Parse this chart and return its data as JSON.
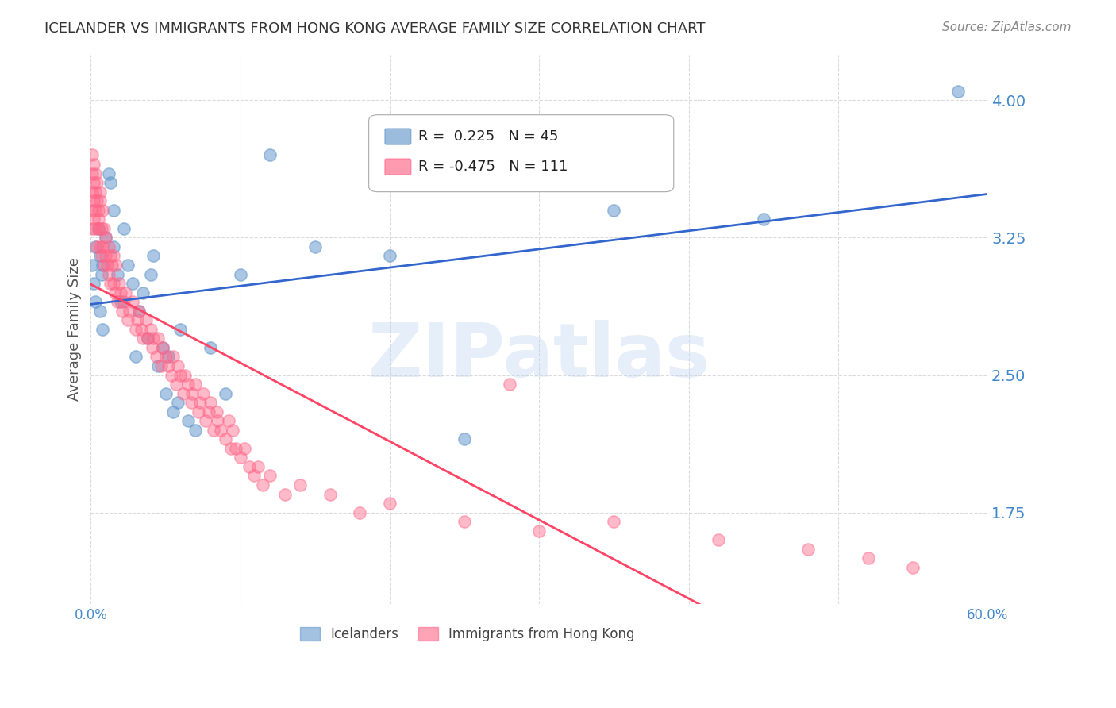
{
  "title": "ICELANDER VS IMMIGRANTS FROM HONG KONG AVERAGE FAMILY SIZE CORRELATION CHART",
  "source": "Source: ZipAtlas.com",
  "xlabel": "",
  "ylabel": "Average Family Size",
  "xlim": [
    0.0,
    0.6
  ],
  "ylim": [
    1.25,
    4.25
  ],
  "yticks": [
    1.75,
    2.5,
    3.25,
    4.0
  ],
  "xticks": [
    0.0,
    0.1,
    0.2,
    0.3,
    0.4,
    0.5,
    0.6
  ],
  "xtick_labels": [
    "0.0%",
    "",
    "",
    "",
    "",
    "",
    "60.0%"
  ],
  "legend_r1": "R =  0.225   N = 45",
  "legend_r2": "R = -0.475   N = 111",
  "label_icelanders": "Icelanders",
  "label_hk": "Immigrants from Hong Kong",
  "blue_color": "#6699CC",
  "pink_color": "#FF6688",
  "blue_line_color": "#3366CC",
  "pink_line_color": "#FF4466",
  "watermark": "ZIPatlas",
  "title_color": "#333333",
  "axis_color": "#4488CC",
  "grid_color": "#CCCCCC",
  "icelanders_x": [
    0.001,
    0.002,
    0.003,
    0.003,
    0.005,
    0.006,
    0.006,
    0.007,
    0.008,
    0.008,
    0.01,
    0.012,
    0.013,
    0.015,
    0.015,
    0.018,
    0.02,
    0.022,
    0.025,
    0.028,
    0.03,
    0.032,
    0.035,
    0.038,
    0.04,
    0.042,
    0.045,
    0.048,
    0.05,
    0.052,
    0.055,
    0.058,
    0.06,
    0.065,
    0.07,
    0.08,
    0.09,
    0.1,
    0.12,
    0.15,
    0.2,
    0.25,
    0.35,
    0.45,
    0.58
  ],
  "icelanders_y": [
    3.1,
    3.0,
    3.2,
    2.9,
    3.3,
    3.15,
    2.85,
    3.05,
    2.75,
    3.1,
    3.25,
    3.6,
    3.55,
    3.4,
    3.2,
    3.05,
    2.9,
    3.3,
    3.1,
    3.0,
    2.6,
    2.85,
    2.95,
    2.7,
    3.05,
    3.15,
    2.55,
    2.65,
    2.4,
    2.6,
    2.3,
    2.35,
    2.75,
    2.25,
    2.2,
    2.65,
    2.4,
    3.05,
    3.7,
    3.2,
    3.15,
    2.15,
    3.4,
    3.35,
    4.05
  ],
  "hk_x": [
    0.001,
    0.001,
    0.001,
    0.001,
    0.001,
    0.002,
    0.002,
    0.002,
    0.002,
    0.003,
    0.003,
    0.003,
    0.003,
    0.004,
    0.004,
    0.004,
    0.005,
    0.005,
    0.005,
    0.006,
    0.006,
    0.006,
    0.007,
    0.007,
    0.008,
    0.008,
    0.009,
    0.009,
    0.01,
    0.01,
    0.011,
    0.012,
    0.012,
    0.013,
    0.013,
    0.014,
    0.015,
    0.015,
    0.016,
    0.017,
    0.018,
    0.019,
    0.02,
    0.021,
    0.022,
    0.023,
    0.025,
    0.026,
    0.028,
    0.03,
    0.031,
    0.032,
    0.034,
    0.035,
    0.037,
    0.038,
    0.04,
    0.041,
    0.042,
    0.044,
    0.045,
    0.047,
    0.048,
    0.05,
    0.052,
    0.054,
    0.055,
    0.057,
    0.058,
    0.06,
    0.062,
    0.063,
    0.065,
    0.067,
    0.068,
    0.07,
    0.072,
    0.073,
    0.075,
    0.077,
    0.079,
    0.08,
    0.082,
    0.084,
    0.085,
    0.087,
    0.09,
    0.092,
    0.094,
    0.095,
    0.097,
    0.1,
    0.103,
    0.106,
    0.109,
    0.112,
    0.115,
    0.12,
    0.13,
    0.14,
    0.16,
    0.18,
    0.2,
    0.25,
    0.3,
    0.35,
    0.42,
    0.48,
    0.52,
    0.55,
    0.28
  ],
  "hk_y": [
    3.5,
    3.6,
    3.7,
    3.4,
    3.3,
    3.55,
    3.45,
    3.65,
    3.35,
    3.5,
    3.4,
    3.6,
    3.3,
    3.45,
    3.55,
    3.2,
    3.4,
    3.35,
    3.3,
    3.45,
    3.2,
    3.5,
    3.3,
    3.15,
    3.4,
    3.2,
    3.3,
    3.1,
    3.25,
    3.15,
    3.1,
    3.2,
    3.05,
    3.15,
    3.0,
    3.1,
    3.0,
    3.15,
    2.95,
    3.1,
    2.9,
    3.0,
    2.95,
    2.85,
    2.9,
    2.95,
    2.8,
    2.85,
    2.9,
    2.75,
    2.8,
    2.85,
    2.75,
    2.7,
    2.8,
    2.7,
    2.75,
    2.65,
    2.7,
    2.6,
    2.7,
    2.55,
    2.65,
    2.6,
    2.55,
    2.5,
    2.6,
    2.45,
    2.55,
    2.5,
    2.4,
    2.5,
    2.45,
    2.35,
    2.4,
    2.45,
    2.3,
    2.35,
    2.4,
    2.25,
    2.3,
    2.35,
    2.2,
    2.3,
    2.25,
    2.2,
    2.15,
    2.25,
    2.1,
    2.2,
    2.1,
    2.05,
    2.1,
    2.0,
    1.95,
    2.0,
    1.9,
    1.95,
    1.85,
    1.9,
    1.85,
    1.75,
    1.8,
    1.7,
    1.65,
    1.7,
    1.6,
    1.55,
    1.5,
    1.45,
    2.45
  ]
}
